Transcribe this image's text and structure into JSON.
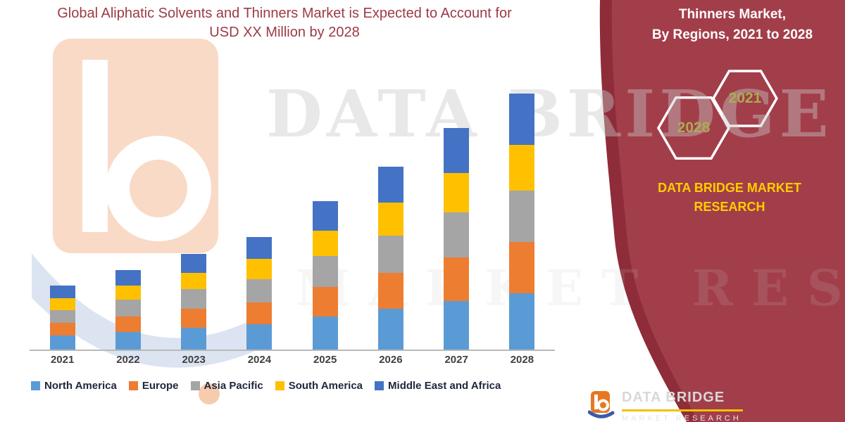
{
  "title": {
    "line1": "Global Aliphatic Solvents and Thinners Market is Expected to Account for",
    "line2": "USD XX Million by 2028"
  },
  "watermark": {
    "line1": "DATA BRIDGE",
    "line2": "MARKET RESEARCH"
  },
  "right_panel": {
    "heading_line1": "Thinners Market,",
    "heading_line2": "By Regions, 2021 to 2028",
    "hex_top_year": "2021",
    "hex_bottom_year": "2028",
    "brand_line1": "DATA BRIDGE MARKET",
    "brand_line2": "RESEARCH",
    "panel_color": "#a23e4a",
    "panel_edge_color": "#8e2d39",
    "brand_text_color": "#ffcc00",
    "hex_year_color": "#a9ad52"
  },
  "footer_logo": {
    "name": "DATA BRIDGE",
    "sub": "MARKET RESEARCH"
  },
  "chart_data": {
    "type": "bar",
    "stacked": true,
    "title": "Global Aliphatic Solvents and Thinners Market is Expected to Account for USD XX Million by 2028",
    "categories": [
      "2021",
      "2022",
      "2023",
      "2024",
      "2025",
      "2026",
      "2027",
      "2028"
    ],
    "series": [
      {
        "name": "North America",
        "color": "#5B9BD5",
        "values": [
          5.5,
          7,
          8.5,
          10,
          13,
          16,
          19,
          22
        ]
      },
      {
        "name": "Europe",
        "color": "#ED7D31",
        "values": [
          5,
          6,
          7.5,
          8.5,
          11.5,
          14,
          17,
          20
        ]
      },
      {
        "name": "Asia Pacific",
        "color": "#A5A5A5",
        "values": [
          5,
          6.5,
          7.5,
          9,
          12,
          14.5,
          17.5,
          20
        ]
      },
      {
        "name": "South America",
        "color": "#FFC000",
        "values": [
          4.5,
          5.5,
          6.5,
          8,
          10,
          13,
          15.5,
          18
        ]
      },
      {
        "name": "Middle East and Africa",
        "color": "#4472C4",
        "values": [
          5,
          6,
          7.5,
          8.5,
          11.5,
          14,
          17.5,
          20
        ]
      }
    ],
    "xlabel": "",
    "ylabel": "",
    "ylim": [
      0,
      100
    ],
    "grid": false,
    "legend_position": "bottom",
    "value_axis_labels_visible": false
  }
}
